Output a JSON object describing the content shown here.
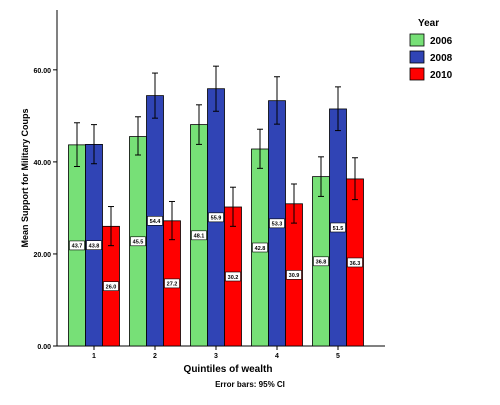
{
  "chart_data": {
    "type": "bar",
    "xlabel": "Quintiles of wealth",
    "ylabel": "Mean Support for Military Coups",
    "footnote": "Error bars: 95% CI",
    "legend_title": "Year",
    "legend_position": "top-right",
    "categories": [
      "1",
      "2",
      "3",
      "4",
      "5"
    ],
    "ylim": [
      0,
      73
    ],
    "yticks": [
      "0.00",
      "20.00",
      "40.00",
      "60.00"
    ],
    "ytick_values": [
      0,
      20,
      40,
      60
    ],
    "grid": false,
    "series": [
      {
        "name": "2006",
        "color": "#77e077",
        "values": [
          43.7,
          45.5,
          48.1,
          42.8,
          36.8
        ],
        "labels": [
          "43.7",
          "45.5",
          "48.1",
          "42.8",
          "36.8"
        ],
        "ci_low": [
          39.0,
          41.5,
          43.8,
          38.6,
          32.5
        ],
        "ci_high": [
          48.5,
          49.8,
          52.4,
          47.1,
          41.1
        ]
      },
      {
        "name": "2008",
        "color": "#3044b5",
        "values": [
          43.8,
          54.4,
          55.9,
          53.3,
          51.5
        ],
        "labels": [
          "43.8",
          "54.4",
          "55.9",
          "53.3",
          "51.5"
        ],
        "ci_low": [
          39.6,
          49.5,
          51.0,
          48.2,
          46.8
        ],
        "ci_high": [
          48.1,
          59.3,
          60.8,
          58.5,
          56.3
        ]
      },
      {
        "name": "2010",
        "color": "#ff0000",
        "values": [
          26.0,
          27.2,
          30.2,
          30.9,
          36.3
        ],
        "labels": [
          "26.0",
          "27.2",
          "30.2",
          "30.9",
          "36.3"
        ],
        "ci_low": [
          21.8,
          23.1,
          26.0,
          26.7,
          31.8
        ],
        "ci_high": [
          30.3,
          31.4,
          34.5,
          35.2,
          40.9
        ]
      }
    ]
  }
}
